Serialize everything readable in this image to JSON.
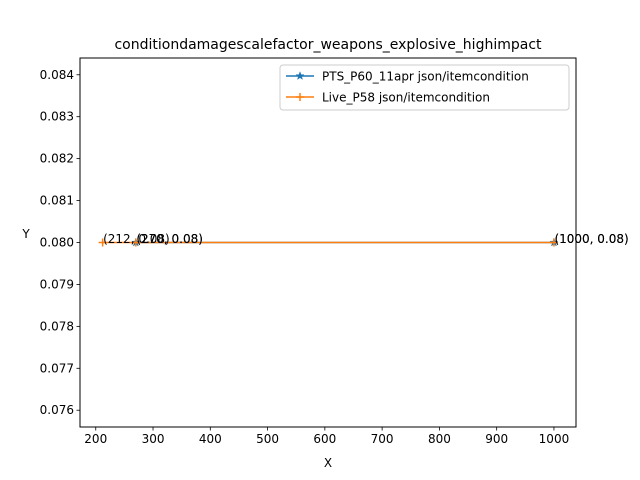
{
  "chart_data": {
    "type": "line",
    "title": "conditiondamagescalefactor_weapons_explosive_highimpact",
    "xlabel": "X",
    "ylabel": "Y",
    "xlim": [
      172.5,
      1038.5
    ],
    "ylim": [
      0.0756,
      0.0844
    ],
    "xticks": [
      200,
      300,
      400,
      500,
      600,
      700,
      800,
      900,
      1000
    ],
    "xtick_labels": [
      "200",
      "300",
      "400",
      "500",
      "600",
      "700",
      "800",
      "900",
      "1000"
    ],
    "yticks": [
      0.076,
      0.077,
      0.078,
      0.079,
      0.08,
      0.081,
      0.082,
      0.083,
      0.084
    ],
    "ytick_labels": [
      "0.076",
      "0.077",
      "0.078",
      "0.079",
      "0.080",
      "0.081",
      "0.082",
      "0.083",
      "0.084"
    ],
    "grid": false,
    "legend_position": "top-right",
    "series": [
      {
        "name": "PTS_P60_11apr json/itemcondition",
        "color": "#1f77b4",
        "marker": "star",
        "x": [
          270,
          1000
        ],
        "y": [
          0.08,
          0.08
        ]
      },
      {
        "name": "Live_P58 json/itemcondition",
        "color": "#ff7f0e",
        "marker": "plus",
        "x": [
          212,
          270,
          1000
        ],
        "y": [
          0.08,
          0.08,
          0.08
        ]
      }
    ],
    "annotations": [
      {
        "text": "(270, 0.08)",
        "x": 270,
        "y": 0.08
      },
      {
        "text": "(1000, 0.08)",
        "x": 1000,
        "y": 0.08
      },
      {
        "text": "(212, 0.08)",
        "x": 212,
        "y": 0.08
      },
      {
        "text": "(270, 0.08)",
        "x": 270,
        "y": 0.08
      },
      {
        "text": "(1000, 0.08)",
        "x": 1000,
        "y": 0.08
      }
    ]
  }
}
